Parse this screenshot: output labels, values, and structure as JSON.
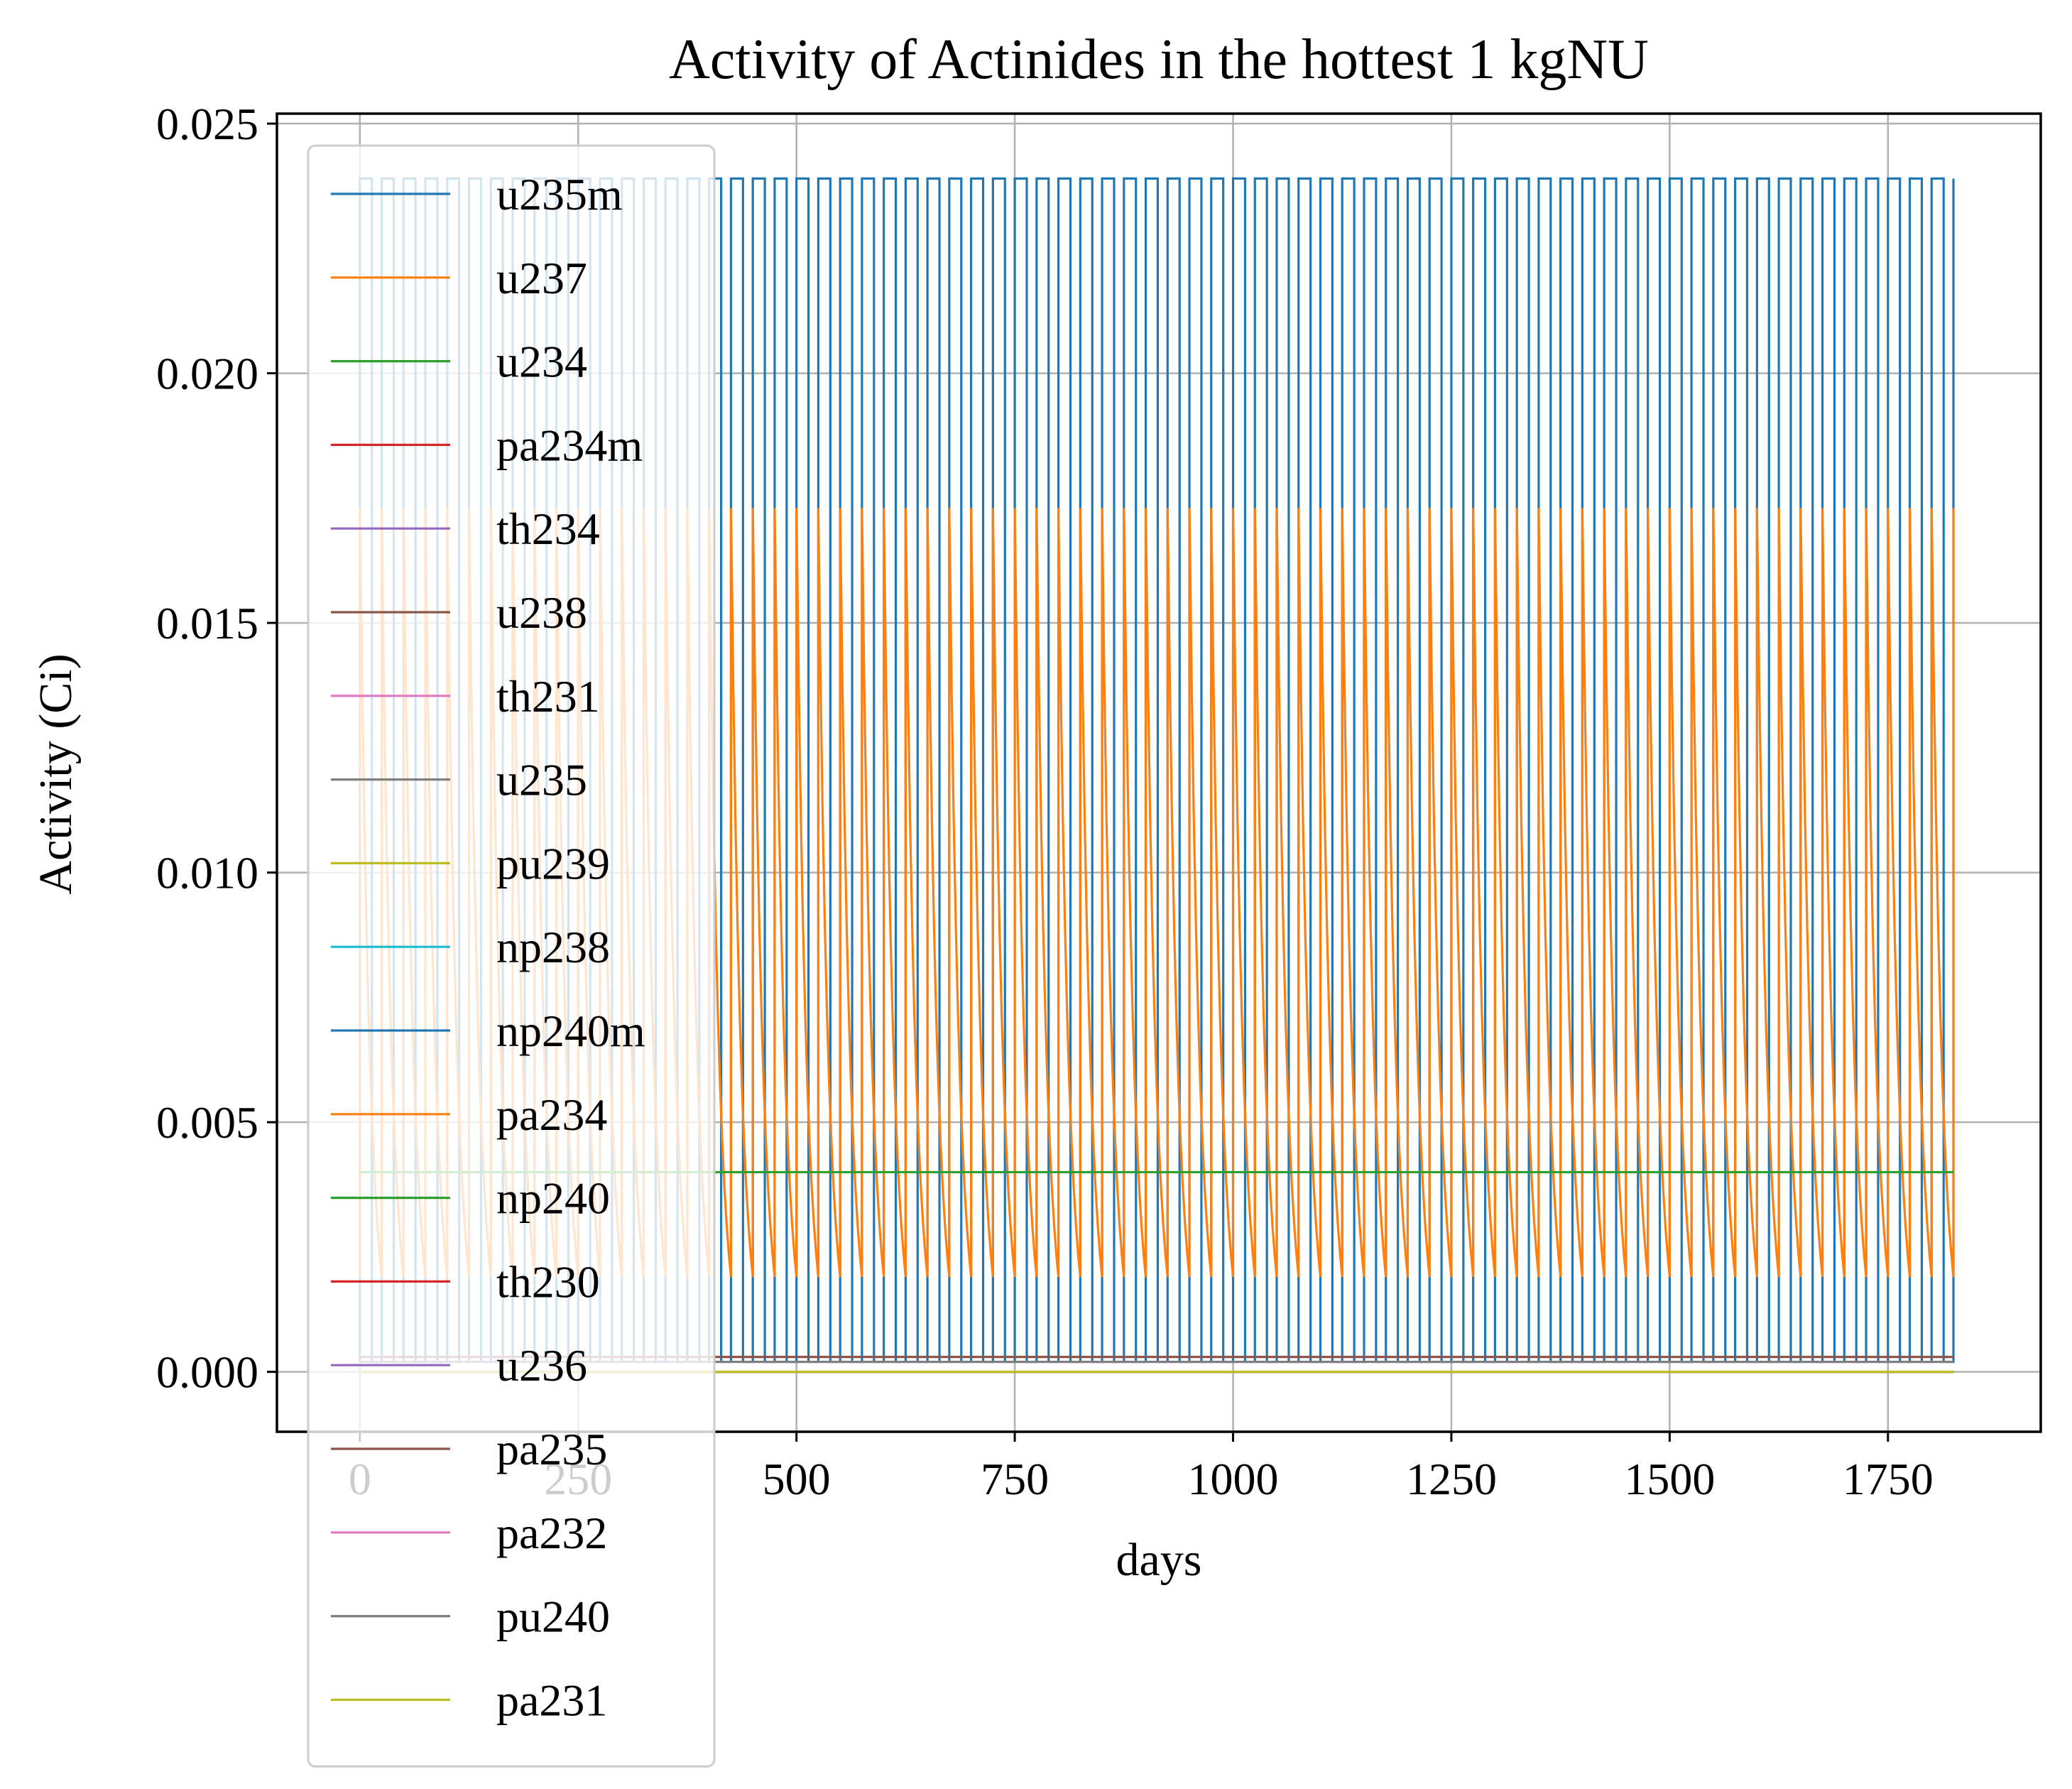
{
  "chart_data": {
    "type": "line",
    "title": "Activity of Actinides in the hottest 1 kgNU",
    "xlabel": "days",
    "ylabel": "Activity (Ci)",
    "xlim": [
      -95,
      1925
    ],
    "ylim": [
      -0.0012,
      0.0252
    ],
    "xticks": [
      0,
      250,
      500,
      750,
      1000,
      1250,
      1500,
      1750
    ],
    "xtick_labels": [
      "0",
      "250",
      "500",
      "750",
      "1000",
      "1250",
      "1500",
      "1750"
    ],
    "yticks": [
      0,
      0.005,
      0.01,
      0.015,
      0.02,
      0.025
    ],
    "ytick_labels": [
      "0.000",
      "0.005",
      "0.010",
      "0.015",
      "0.020",
      "0.025"
    ],
    "grid": true,
    "legend_position": "upper-left, extending below the axes",
    "x_range": [
      0,
      1825
    ],
    "series": [
      {
        "name": "u235m",
        "color": "#1f77b4",
        "shape": "square-pulse",
        "high": 0.0239,
        "low": 0.0002,
        "cycles": 73
      },
      {
        "name": "u237",
        "color": "#ff7f0e",
        "shape": "sawtooth-decay",
        "high": 0.0173,
        "low": 0.0019,
        "cycles": 73
      },
      {
        "name": "u234",
        "color": "#2ca02c",
        "shape": "constant",
        "value": 0.004
      },
      {
        "name": "pa234m",
        "color": "#d62728",
        "shape": "constant",
        "value": 0.0003
      },
      {
        "name": "th234",
        "color": "#9467bd",
        "shape": "constant",
        "value": 0.0003
      },
      {
        "name": "u238",
        "color": "#8c564b",
        "shape": "constant",
        "value": 0.0003
      },
      {
        "name": "th231",
        "color": "#e377c2",
        "shape": "constant",
        "value": 0.0002
      },
      {
        "name": "u235",
        "color": "#7f7f7f",
        "shape": "constant",
        "value": 0.0002
      },
      {
        "name": "pu239",
        "color": "#bcbd22",
        "shape": "constant",
        "value": 0.0
      },
      {
        "name": "np238",
        "color": "#17becf",
        "shape": "constant",
        "value": 0.0
      },
      {
        "name": "np240m",
        "color": "#1f77b4",
        "shape": "constant",
        "value": 0.0
      },
      {
        "name": "pa234",
        "color": "#ff7f0e",
        "shape": "constant",
        "value": 0.0
      },
      {
        "name": "np240",
        "color": "#2ca02c",
        "shape": "constant",
        "value": 0.0
      },
      {
        "name": "th230",
        "color": "#d62728",
        "shape": "constant",
        "value": 0.0
      },
      {
        "name": "u236",
        "color": "#9467bd",
        "shape": "constant",
        "value": 0.0
      },
      {
        "name": "pa235",
        "color": "#8c564b",
        "shape": "constant",
        "value": 0.0
      },
      {
        "name": "pa232",
        "color": "#e377c2",
        "shape": "constant",
        "value": 0.0
      },
      {
        "name": "pu240",
        "color": "#7f7f7f",
        "shape": "constant",
        "value": 0.0
      },
      {
        "name": "pa231",
        "color": "#bcbd22",
        "shape": "constant",
        "value": 0.0
      }
    ]
  }
}
